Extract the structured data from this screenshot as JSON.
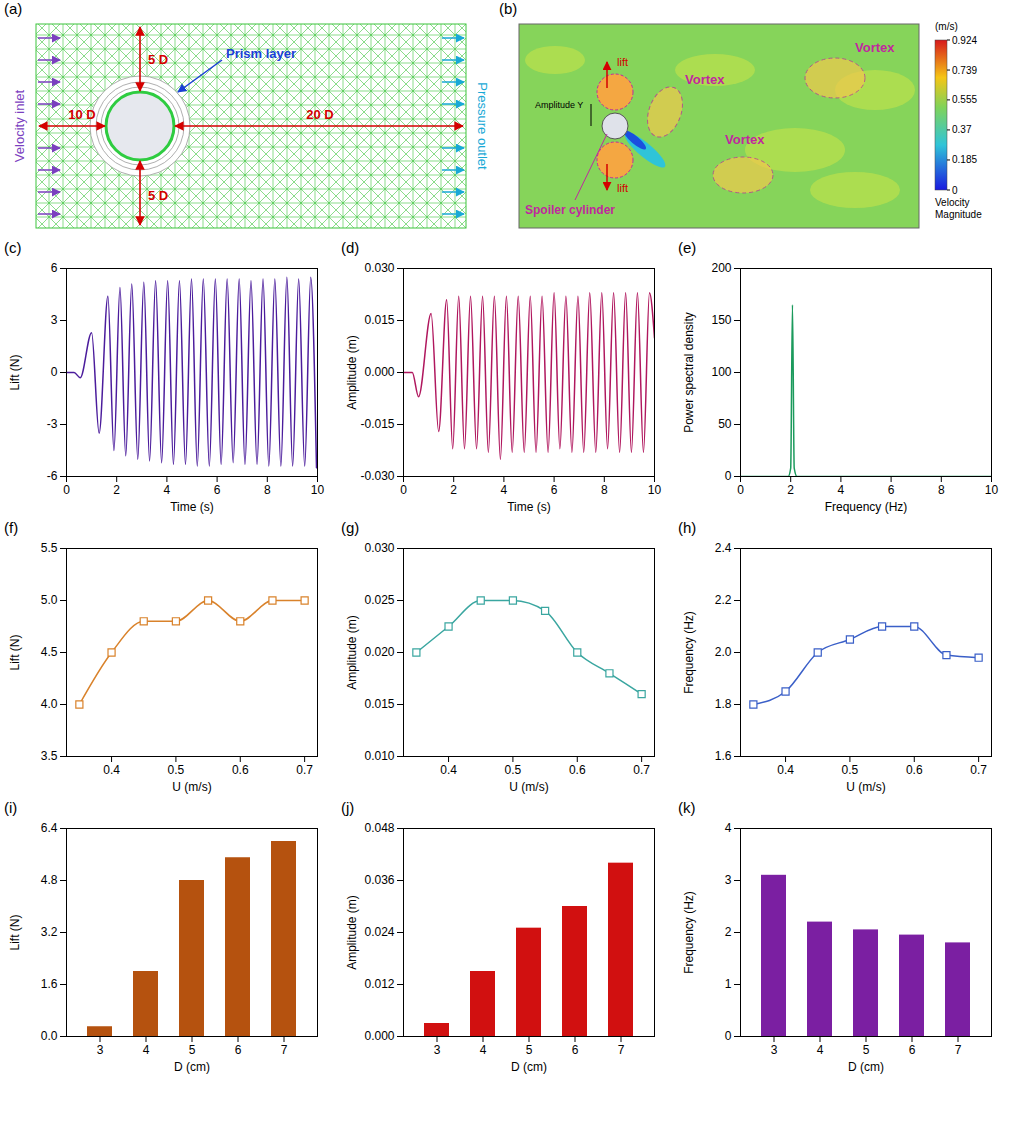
{
  "diagrams": {
    "a": {
      "label": "(a)",
      "inlet": "Velocity inlet",
      "outlet": "Pressure outlet",
      "prism": "Prism layer",
      "up": "5 D",
      "down": "5 D",
      "left": "10 D",
      "right": "20 D"
    },
    "b": {
      "label": "(b)",
      "lift": "lift",
      "amplitude": "Amplitude Y",
      "vortex": "Vortex",
      "spoiler": "Spoiler cylinder",
      "colorbar": {
        "unit": "(m/s)",
        "title": "Velocity Magnitude",
        "range": [
          0,
          0.924
        ],
        "ticks": [
          0.924,
          0.739,
          0.555,
          0.37,
          0.185,
          0
        ]
      }
    }
  },
  "chart_data": [
    {
      "label": "(c)",
      "type": "line",
      "x_label": "Time (s)",
      "y_label": "Lift (N)",
      "color": "#4b1c9c",
      "x": [
        0,
        0.3,
        0.55,
        1.0,
        1.3,
        1.65,
        1.89,
        2.13,
        2.36,
        2.6,
        2.84,
        3.08,
        3.31,
        3.55,
        3.79,
        4.03,
        4.26,
        4.5,
        4.74,
        4.98,
        5.21,
        5.45,
        5.69,
        5.93,
        6.16,
        6.4,
        6.64,
        6.88,
        7.11,
        7.35,
        7.59,
        7.83,
        8.06,
        8.3,
        8.54,
        8.78,
        9.01,
        9.25,
        9.49,
        9.73,
        9.96
      ],
      "values": [
        0,
        0,
        -0.3,
        2.3,
        -3.5,
        4.4,
        -4.5,
        4.9,
        -4.8,
        5.1,
        -5.0,
        5.2,
        -5.1,
        5.3,
        -5.2,
        5.3,
        -5.3,
        5.3,
        -5.3,
        5.4,
        -5.4,
        5.4,
        -5.4,
        5.4,
        -5.3,
        5.4,
        -5.2,
        5.4,
        -5.3,
        5.3,
        -5.3,
        5.4,
        -5.4,
        5.4,
        -5.4,
        5.5,
        -5.4,
        5.4,
        -5.4,
        5.5,
        -5.5
      ],
      "xlim": [
        0,
        10
      ],
      "xticks": [
        0,
        2,
        4,
        6,
        8,
        10
      ],
      "ylim": [
        -6,
        6
      ],
      "yticks": [
        -6,
        -3,
        0,
        3,
        6
      ]
    },
    {
      "label": "(d)",
      "type": "line",
      "x_label": "Time (s)",
      "y_label": "Amplitude (m)",
      "color": "#b0175e",
      "x": [
        0,
        0.35,
        0.6,
        1.1,
        1.4,
        1.72,
        1.96,
        2.2,
        2.43,
        2.67,
        2.91,
        3.15,
        3.38,
        3.62,
        3.86,
        4.1,
        4.33,
        4.57,
        4.81,
        5.05,
        5.28,
        5.52,
        5.76,
        6.0,
        6.23,
        6.47,
        6.71,
        6.95,
        7.18,
        7.42,
        7.66,
        7.9,
        8.13,
        8.37,
        8.61,
        8.85,
        9.08,
        9.32,
        9.56,
        9.8,
        10
      ],
      "values": [
        0,
        0,
        -0.007,
        0.017,
        -0.017,
        0.021,
        -0.022,
        0.022,
        -0.022,
        0.022,
        -0.022,
        0.022,
        -0.023,
        0.022,
        -0.025,
        0.022,
        -0.023,
        0.022,
        -0.023,
        0.022,
        -0.023,
        0.022,
        -0.023,
        0.023,
        -0.022,
        0.022,
        -0.023,
        0.022,
        -0.023,
        0.023,
        -0.023,
        0.023,
        -0.022,
        0.023,
        -0.023,
        0.023,
        -0.023,
        0.023,
        -0.023,
        0.023,
        0.01
      ],
      "xlim": [
        0,
        10
      ],
      "xticks": [
        0,
        2,
        4,
        6,
        8,
        10
      ],
      "ylim": [
        -0.03,
        0.03
      ],
      "yticks": [
        {
          "value": -0.03,
          "label": "-0.030"
        },
        {
          "value": -0.015,
          "label": "-0.015"
        },
        {
          "value": 0,
          "label": "0.000"
        },
        {
          "value": 0.015,
          "label": "0.015"
        },
        {
          "value": 0.03,
          "label": "0.030"
        }
      ]
    },
    {
      "label": "(e)",
      "type": "line",
      "x_label": "Frequency (Hz)",
      "y_label": "Power spectral density",
      "color": "#1b9a5c",
      "x": [
        0,
        1.9,
        2.0,
        2.07,
        2.14,
        2.25,
        10
      ],
      "values": [
        0,
        0,
        8,
        165,
        8,
        0,
        0
      ],
      "xlim": [
        0,
        10
      ],
      "xticks": [
        0,
        2,
        4,
        6,
        8,
        10
      ],
      "ylim": [
        0,
        200
      ],
      "yticks": [
        0,
        50,
        100,
        150,
        200
      ]
    },
    {
      "label": "(f)",
      "type": "line",
      "x_label": "U (m/s)",
      "y_label": "Lift (N)",
      "color": "#d9822b",
      "marker": "square",
      "x": [
        0.35,
        0.4,
        0.45,
        0.5,
        0.55,
        0.6,
        0.65,
        0.7
      ],
      "values": [
        4.0,
        4.5,
        4.8,
        4.8,
        5.0,
        4.8,
        5.0,
        5.0
      ],
      "xlim": [
        0.33,
        0.72
      ],
      "xticks": [
        0.4,
        0.5,
        0.6,
        0.7
      ],
      "ylim": [
        3.5,
        5.5
      ],
      "yticks": [
        3.5,
        {
          "value": 4,
          "label": "4.0"
        },
        4.5,
        {
          "value": 5,
          "label": "5.0"
        },
        5.5
      ]
    },
    {
      "label": "(g)",
      "type": "line",
      "x_label": "U (m/s)",
      "y_label": "Amplitude (m)",
      "color": "#3aa6a0",
      "marker": "square",
      "x": [
        0.35,
        0.4,
        0.45,
        0.5,
        0.55,
        0.6,
        0.65,
        0.7
      ],
      "values": [
        0.02,
        0.0225,
        0.025,
        0.025,
        0.024,
        0.02,
        0.018,
        0.016
      ],
      "xlim": [
        0.33,
        0.72
      ],
      "xticks": [
        0.4,
        0.5,
        0.6,
        0.7
      ],
      "ylim": [
        0.01,
        0.03
      ],
      "yticks": [
        {
          "value": 0.01,
          "label": "0.010"
        },
        0.015,
        {
          "value": 0.02,
          "label": "0.020"
        },
        0.025,
        {
          "value": 0.03,
          "label": "0.030"
        }
      ]
    },
    {
      "label": "(h)",
      "type": "line",
      "x_label": "U (m/s)",
      "y_label": "Frequency (Hz)",
      "color": "#3a5fc8",
      "marker": "square",
      "x": [
        0.35,
        0.4,
        0.45,
        0.5,
        0.55,
        0.6,
        0.65,
        0.7
      ],
      "values": [
        1.8,
        1.85,
        2.0,
        2.05,
        2.1,
        2.1,
        1.99,
        1.98
      ],
      "xlim": [
        0.33,
        0.72
      ],
      "xticks": [
        0.4,
        0.5,
        0.6,
        0.7
      ],
      "ylim": [
        1.6,
        2.4
      ],
      "yticks": [
        1.6,
        1.8,
        {
          "value": 2,
          "label": "2.0"
        },
        2.2,
        2.4
      ]
    },
    {
      "label": "(i)",
      "type": "bar",
      "x_label": "D (cm)",
      "y_label": "Lift (N)",
      "color": "#b5520f",
      "categories": [
        "3",
        "4",
        "5",
        "6",
        "7"
      ],
      "values": [
        0.3,
        2.0,
        4.8,
        5.5,
        6.0
      ],
      "ylim": [
        0,
        6.4
      ],
      "yticks": [
        {
          "value": 0,
          "label": "0.0"
        },
        1.6,
        3.2,
        4.8,
        6.4
      ]
    },
    {
      "label": "(j)",
      "type": "bar",
      "x_label": "D (cm)",
      "y_label": "Amplitude (m)",
      "color": "#d11010",
      "categories": [
        "3",
        "4",
        "5",
        "6",
        "7"
      ],
      "values": [
        0.003,
        0.015,
        0.025,
        0.03,
        0.04
      ],
      "ylim": [
        0,
        0.048
      ],
      "yticks": [
        {
          "value": 0,
          "label": "0.000"
        },
        0.012,
        0.024,
        0.036,
        0.048
      ]
    },
    {
      "label": "(k)",
      "type": "bar",
      "x_label": "D (cm)",
      "y_label": "Frequency (Hz)",
      "color": "#7b1fa2",
      "categories": [
        "3",
        "4",
        "5",
        "6",
        "7"
      ],
      "values": [
        3.1,
        2.2,
        2.05,
        1.95,
        1.8
      ],
      "ylim": [
        0,
        4
      ],
      "yticks": [
        0,
        1,
        2,
        3,
        4
      ]
    }
  ]
}
